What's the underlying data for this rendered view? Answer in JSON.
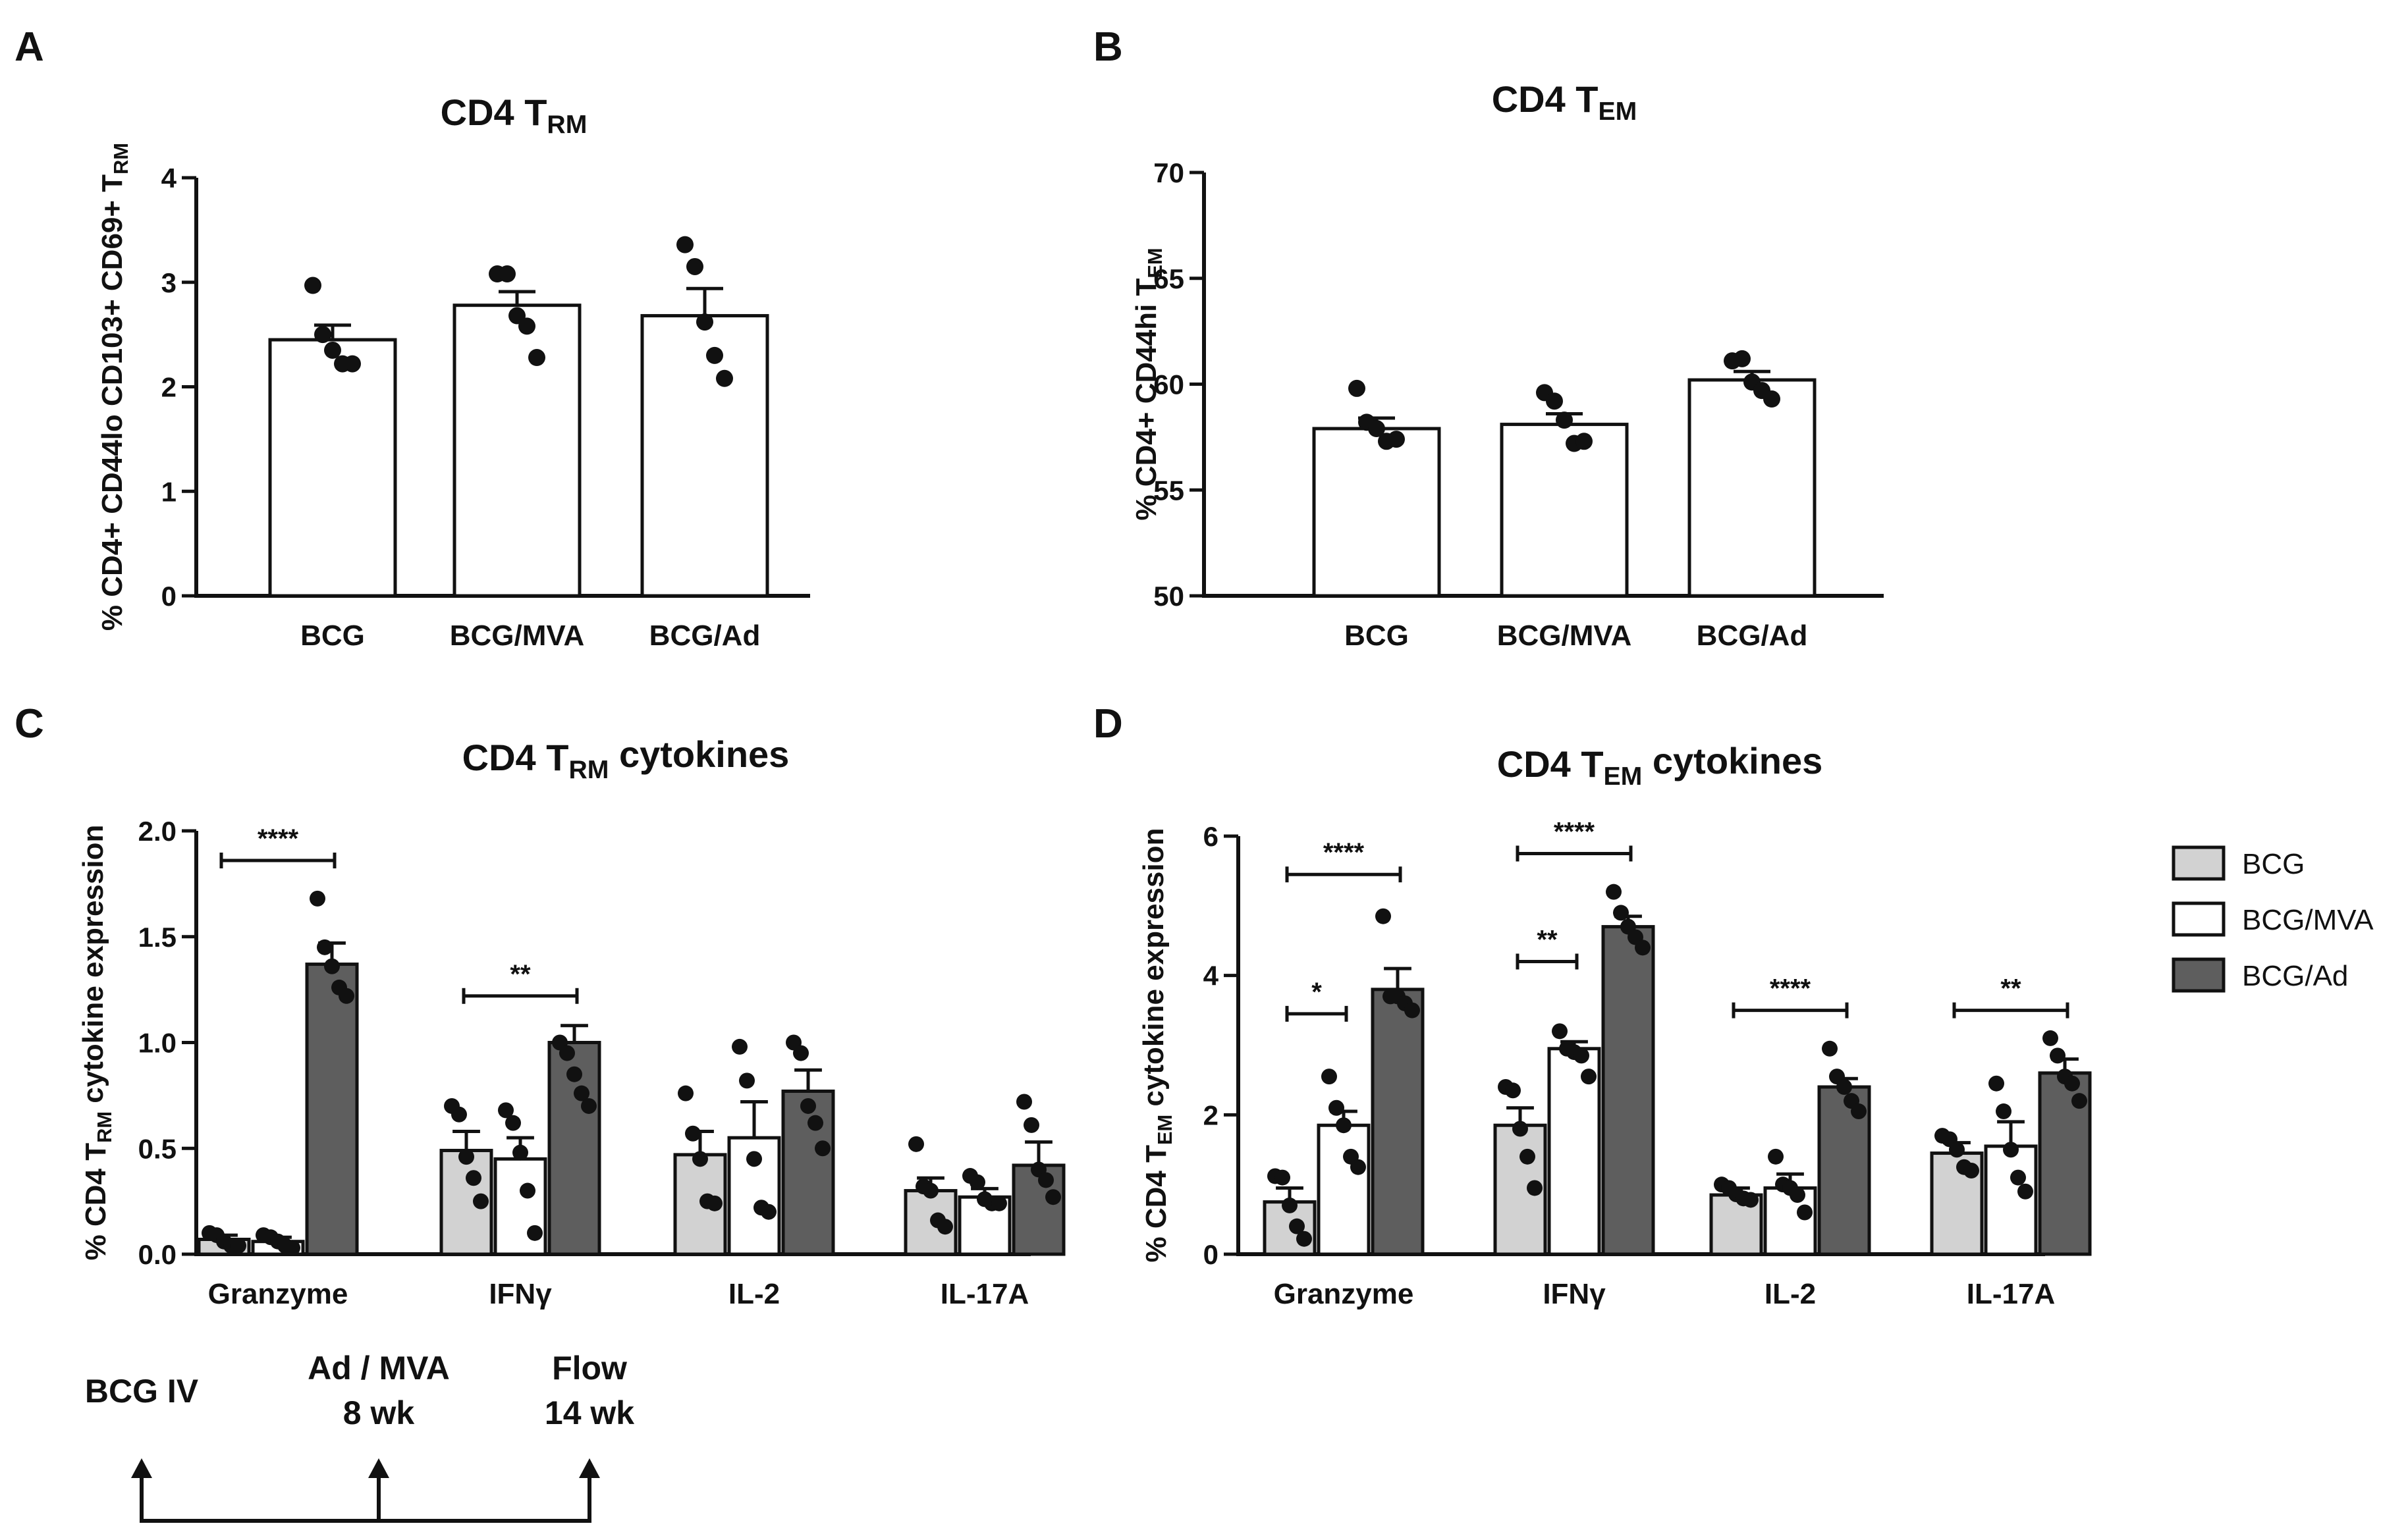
{
  "panel_letters": [
    "A",
    "B",
    "C",
    "D"
  ],
  "colors": {
    "bcg": "#d2d2d2",
    "bcg_mva": "#ffffff",
    "bcg_ad": "#5e5e5e",
    "ink": "#111111"
  },
  "chart_data": [
    {
      "id": "A",
      "type": "bar",
      "title": {
        "main": "CD4 T",
        "sub": "RM"
      },
      "ylabel": {
        "pre": "% CD4+ CD44lo CD103+ CD69+ T",
        "sub": "RM",
        "post": ""
      },
      "ylim": [
        0,
        4
      ],
      "yticks": [
        0,
        1,
        2,
        3,
        4
      ],
      "categories": [
        "BCG",
        "BCG/MVA",
        "BCG/Ad"
      ],
      "means": [
        2.45,
        2.78,
        2.68
      ],
      "sem": [
        0.14,
        0.13,
        0.26
      ],
      "points": [
        [
          2.97,
          2.5,
          2.35,
          2.22,
          2.22
        ],
        [
          3.08,
          3.08,
          2.68,
          2.58,
          2.28
        ],
        [
          3.36,
          3.15,
          2.62,
          2.3,
          2.08
        ]
      ]
    },
    {
      "id": "B",
      "type": "bar",
      "title": {
        "main": "CD4 T",
        "sub": "EM"
      },
      "ylabel": {
        "pre": "% CD4+ CD44hi T",
        "sub": "EM",
        "post": ""
      },
      "ylim": [
        50,
        70
      ],
      "yticks": [
        50,
        55,
        60,
        65,
        70
      ],
      "categories": [
        "BCG",
        "BCG/MVA",
        "BCG/Ad"
      ],
      "means": [
        57.9,
        58.1,
        60.2
      ],
      "sem": [
        0.5,
        0.5,
        0.4
      ],
      "points": [
        [
          59.8,
          58.2,
          57.9,
          57.3,
          57.4
        ],
        [
          59.6,
          59.2,
          58.3,
          57.2,
          57.3
        ],
        [
          61.1,
          61.2,
          60.1,
          59.7,
          59.3
        ]
      ]
    },
    {
      "id": "C",
      "type": "bar",
      "title": {
        "main": "CD4 T",
        "sub": "RM",
        "post": " cytokines"
      },
      "ylabel": {
        "pre": "% CD4 T",
        "sub": "RM",
        "post": " cytokine expression"
      },
      "ylim": [
        0,
        2.0
      ],
      "yticks": [
        0.0,
        0.5,
        1.0,
        1.5,
        2.0
      ],
      "ytick_labels": [
        "0.0",
        "0.5",
        "1.0",
        "1.5",
        "2.0"
      ],
      "categories": [
        "Granzyme",
        "IFNγ",
        "IL-2",
        "IL-17A"
      ],
      "series": [
        {
          "name": "BCG",
          "means": [
            0.07,
            0.49,
            0.47,
            0.3
          ],
          "sem": [
            0.02,
            0.09,
            0.11,
            0.06
          ],
          "points": [
            [
              0.1,
              0.09,
              0.06,
              0.04,
              0.04
            ],
            [
              0.7,
              0.66,
              0.46,
              0.36,
              0.25
            ],
            [
              0.76,
              0.57,
              0.45,
              0.25,
              0.24
            ],
            [
              0.52,
              0.32,
              0.3,
              0.16,
              0.13
            ]
          ]
        },
        {
          "name": "BCG/MVA",
          "means": [
            0.06,
            0.45,
            0.55,
            0.27
          ],
          "sem": [
            0.02,
            0.1,
            0.17,
            0.04
          ],
          "points": [
            [
              0.09,
              0.08,
              0.06,
              0.04,
              0.03
            ],
            [
              0.68,
              0.62,
              0.48,
              0.3,
              0.1
            ],
            [
              0.98,
              0.82,
              0.45,
              0.22,
              0.2
            ],
            [
              0.37,
              0.34,
              0.26,
              0.24,
              0.24
            ]
          ]
        },
        {
          "name": "BCG/Ad",
          "means": [
            1.37,
            1.0,
            0.77,
            0.42
          ],
          "sem": [
            0.1,
            0.08,
            0.1,
            0.11
          ],
          "points": [
            [
              1.68,
              1.45,
              1.36,
              1.26,
              1.22
            ],
            [
              1.0,
              0.95,
              0.85,
              0.76,
              0.7
            ],
            [
              1.0,
              0.95,
              0.7,
              0.62,
              0.5
            ],
            [
              0.72,
              0.61,
              0.4,
              0.35,
              0.27
            ]
          ]
        }
      ],
      "significance": [
        {
          "label": "****",
          "category": 0,
          "from": 0,
          "to": 2,
          "y": 1.86
        },
        {
          "label": "**",
          "category": 1,
          "from": 0,
          "to": 2,
          "y": 1.22
        }
      ]
    },
    {
      "id": "D",
      "type": "bar",
      "title": {
        "main": "CD4 T",
        "sub": "EM",
        "post": " cytokines"
      },
      "ylabel": {
        "pre": "% CD4 T",
        "sub": "EM",
        "post": " cytokine expression"
      },
      "ylim": [
        0,
        6
      ],
      "yticks": [
        0,
        2,
        4,
        6
      ],
      "categories": [
        "Granzyme",
        "IFNγ",
        "IL-2",
        "IL-17A"
      ],
      "series": [
        {
          "name": "BCG",
          "means": [
            0.75,
            1.85,
            0.85,
            1.45
          ],
          "sem": [
            0.2,
            0.25,
            0.1,
            0.15
          ],
          "points": [
            [
              1.12,
              1.1,
              0.7,
              0.4,
              0.22
            ],
            [
              2.4,
              2.35,
              1.8,
              1.4,
              0.95
            ],
            [
              1.0,
              0.95,
              0.86,
              0.8,
              0.78
            ],
            [
              1.7,
              1.65,
              1.5,
              1.25,
              1.2
            ]
          ]
        },
        {
          "name": "BCG/MVA",
          "means": [
            1.85,
            2.95,
            0.95,
            1.55
          ],
          "sem": [
            0.2,
            0.1,
            0.2,
            0.35
          ],
          "points": [
            [
              2.55,
              2.1,
              1.85,
              1.4,
              1.25
            ],
            [
              3.2,
              2.95,
              2.9,
              2.85,
              2.55
            ],
            [
              1.4,
              1.0,
              0.95,
              0.85,
              0.6
            ],
            [
              2.45,
              2.05,
              1.5,
              1.1,
              0.9
            ]
          ]
        },
        {
          "name": "BCG/Ad",
          "means": [
            3.8,
            4.7,
            2.4,
            2.6
          ],
          "sem": [
            0.3,
            0.15,
            0.12,
            0.2
          ],
          "points": [
            [
              4.85,
              3.7,
              3.7,
              3.6,
              3.5
            ],
            [
              5.2,
              4.9,
              4.7,
              4.55,
              4.4
            ],
            [
              2.95,
              2.55,
              2.4,
              2.2,
              2.05
            ],
            [
              3.1,
              2.85,
              2.55,
              2.45,
              2.2
            ]
          ]
        }
      ],
      "significance": [
        {
          "label": "****",
          "category": 0,
          "from": 0,
          "to": 2,
          "y": 5.45
        },
        {
          "label": "*",
          "category": 0,
          "from": 0,
          "to": 1,
          "y": 3.45
        },
        {
          "label": "****",
          "category": 1,
          "from": 0,
          "to": 2,
          "y": 5.75
        },
        {
          "label": "**",
          "category": 1,
          "from": 0,
          "to": 1,
          "y": 4.2
        },
        {
          "label": "****",
          "category": 2,
          "from": 0,
          "to": 2,
          "y": 3.5
        },
        {
          "label": "**",
          "category": 3,
          "from": 0,
          "to": 2,
          "y": 3.5
        }
      ]
    }
  ],
  "legend": [
    {
      "label": "BCG"
    },
    {
      "label": "BCG/MVA"
    },
    {
      "label": "BCG/Ad"
    }
  ],
  "timeline": {
    "events": [
      {
        "line1": "BCG IV",
        "line2": ""
      },
      {
        "line1": "Ad / MVA",
        "line2": "8 wk"
      },
      {
        "line1": "Flow",
        "line2": "14 wk"
      }
    ]
  }
}
